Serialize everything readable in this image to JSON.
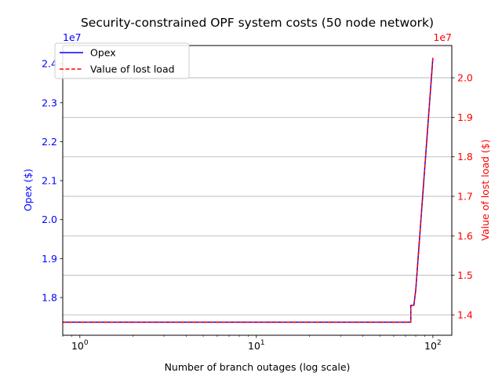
{
  "chart_data": {
    "type": "line",
    "title": "Security-constrained OPF system costs (50 node network)",
    "xlabel": "Number of branch outages (log scale)",
    "xscale": "log",
    "xlim": [
      0.8,
      128
    ],
    "x_ticks": [
      {
        "value": 1,
        "label": "10",
        "exp": "0"
      },
      {
        "value": 10,
        "label": "10",
        "exp": "1"
      },
      {
        "value": 100,
        "label": "10",
        "exp": "2"
      }
    ],
    "left_axis": {
      "label": "Opex ($)",
      "color": "#0000ff",
      "offset_text": "1e7",
      "ylim": [
        1.7033,
        2.4467
      ],
      "ticks": [
        {
          "value": 1.8,
          "label": "1.8"
        },
        {
          "value": 1.9,
          "label": "1.9"
        },
        {
          "value": 2.0,
          "label": "2.0"
        },
        {
          "value": 2.1,
          "label": "2.1"
        },
        {
          "value": 2.2,
          "label": "2.2"
        },
        {
          "value": 2.3,
          "label": "2.3"
        },
        {
          "value": 2.4,
          "label": "2.4"
        }
      ]
    },
    "right_axis": {
      "label": "Value of lost load ($)",
      "color": "#ff0000",
      "offset_text": "1e7",
      "ylim": [
        1.3484,
        2.0816
      ],
      "ticks": [
        {
          "value": 1.4,
          "label": "1.4"
        },
        {
          "value": 1.5,
          "label": "1.5"
        },
        {
          "value": 1.6,
          "label": "1.6"
        },
        {
          "value": 1.7,
          "label": "1.7"
        },
        {
          "value": 1.8,
          "label": "1.8"
        },
        {
          "value": 1.9,
          "label": "1.9"
        },
        {
          "value": 2.0,
          "label": "2.0"
        }
      ]
    },
    "grid": "y (right axis)",
    "legend_position": "upper-left",
    "series": [
      {
        "name": "Opex",
        "axis": "left",
        "color": "#0000ff",
        "style": "solid",
        "x": [
          0.8,
          75,
          75,
          78,
          78,
          80,
          100
        ],
        "y": [
          1.7367,
          1.7367,
          1.78,
          1.78,
          1.78,
          1.82,
          2.415
        ]
      },
      {
        "name": "Value of lost load",
        "axis": "right",
        "color": "#ff0000",
        "style": "dashed",
        "x": [
          0.8,
          75,
          75,
          78,
          78,
          80,
          100
        ],
        "y": [
          1.3814,
          1.3814,
          1.4241,
          1.4241,
          1.4241,
          1.4636,
          2.0504
        ]
      }
    ]
  }
}
